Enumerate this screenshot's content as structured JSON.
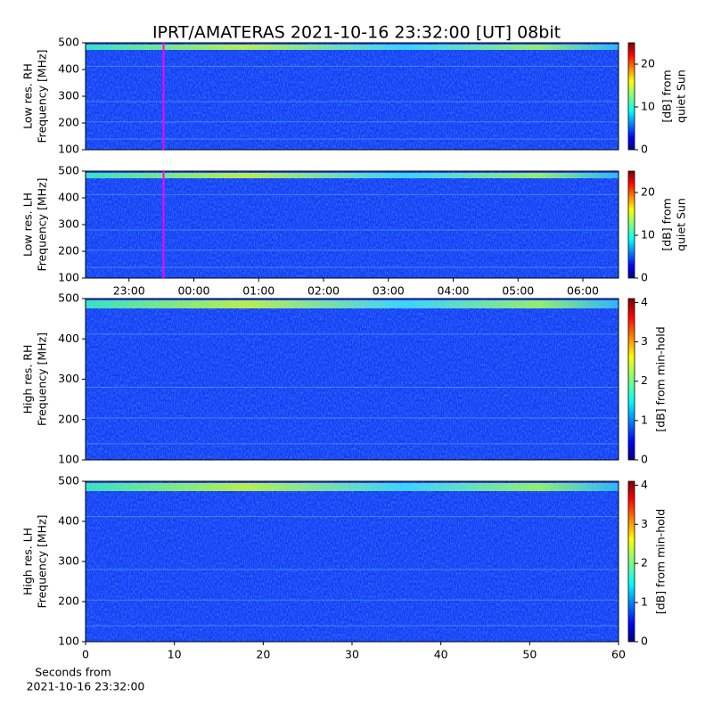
{
  "title": "IPRT/AMATERAS 2021-10-16 23:32:00 [UT]   08bit",
  "chart_data": [
    {
      "type": "heatmap",
      "ylabel": [
        "Low res. RH",
        "Frequency [MHz]"
      ],
      "ylim": [
        100,
        500
      ],
      "yticks": [
        100,
        200,
        300,
        400,
        500
      ],
      "xlim": [
        22.33,
        30.55
      ],
      "vline": 23.533,
      "vline_color": "#ff00ff",
      "clim": [
        0,
        25
      ],
      "cticks": [
        0,
        10,
        20
      ],
      "clabel": [
        "[dB] from",
        "quiet Sun"
      ]
    },
    {
      "type": "heatmap",
      "ylabel": [
        "Low res. LH",
        "Frequency [MHz]"
      ],
      "ylim": [
        100,
        500
      ],
      "yticks": [
        100,
        200,
        300,
        400,
        500
      ],
      "xlim": [
        22.33,
        30.55
      ],
      "xticks": [
        {
          "value": 23,
          "label": "23:00"
        },
        {
          "value": 24,
          "label": "00:00"
        },
        {
          "value": 25,
          "label": "01:00"
        },
        {
          "value": 26,
          "label": "02:00"
        },
        {
          "value": 27,
          "label": "03:00"
        },
        {
          "value": 28,
          "label": "04:00"
        },
        {
          "value": 29,
          "label": "05:00"
        },
        {
          "value": 30,
          "label": "06:00"
        }
      ],
      "vline": 23.533,
      "vline_color": "#ff00ff",
      "clim": [
        0,
        25
      ],
      "cticks": [
        0,
        10,
        20
      ],
      "clabel": [
        "[dB] from",
        "quiet Sun"
      ]
    },
    {
      "type": "heatmap",
      "ylabel": [
        "High res. RH",
        "Frequency [MHz]"
      ],
      "ylim": [
        100,
        500
      ],
      "yticks": [
        100,
        200,
        300,
        400,
        500
      ],
      "xlim": [
        0,
        60
      ],
      "clim": [
        0,
        4.1
      ],
      "cticks": [
        0,
        1,
        2,
        3,
        4
      ],
      "clabel": [
        "[dB] from min-hold"
      ]
    },
    {
      "type": "heatmap",
      "ylabel": [
        "High res. LH",
        "Frequency [MHz]"
      ],
      "ylim": [
        100,
        500
      ],
      "yticks": [
        100,
        200,
        300,
        400,
        500
      ],
      "xlim": [
        0,
        60
      ],
      "xticks": [
        0,
        10,
        20,
        30,
        40,
        50,
        60
      ],
      "xlabel": [
        "Seconds from",
        "2021-10-16 23:32:00"
      ],
      "clim": [
        0,
        4.1
      ],
      "cticks": [
        0,
        1,
        2,
        3,
        4
      ],
      "clabel": [
        "[dB] from min-hold"
      ]
    }
  ]
}
